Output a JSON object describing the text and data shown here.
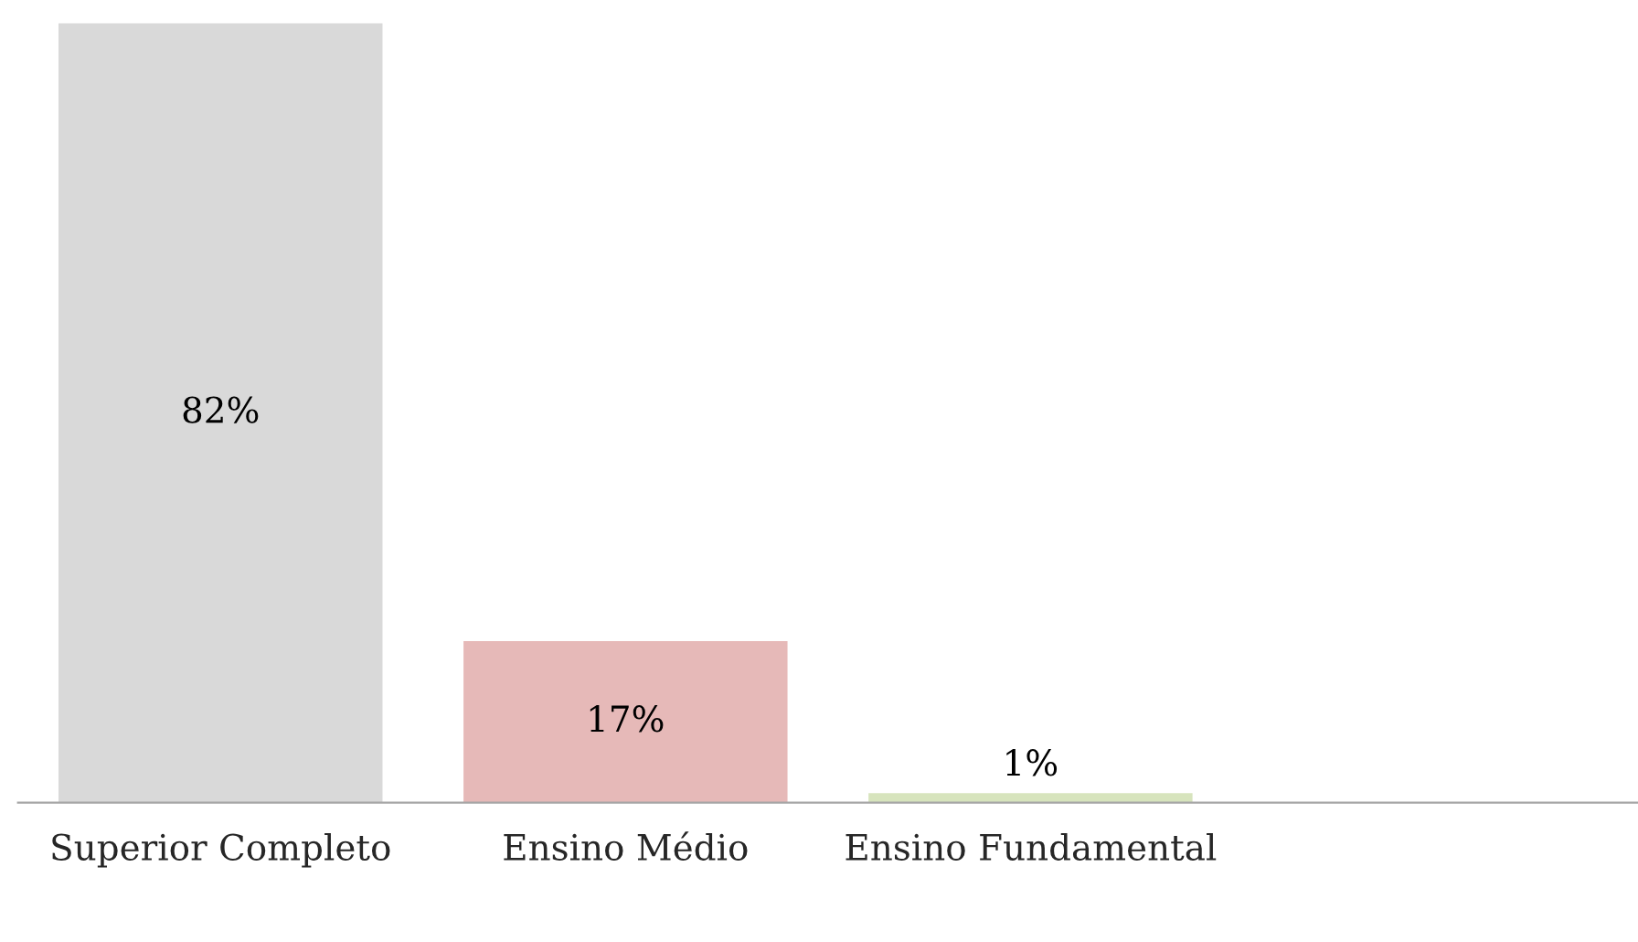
{
  "chart_data": {
    "type": "bar",
    "categories": [
      "Superior Completo",
      "Ensino Médio",
      "Ensino Fundamental",
      null
    ],
    "values": [
      82,
      17,
      1,
      null
    ],
    "colors": [
      "#d9d9d9",
      "#e6b9b8",
      "#d7e4bd",
      null
    ],
    "value_labels": [
      "82%",
      "17%",
      "1%",
      null
    ],
    "grid": false,
    "legend": false
  }
}
